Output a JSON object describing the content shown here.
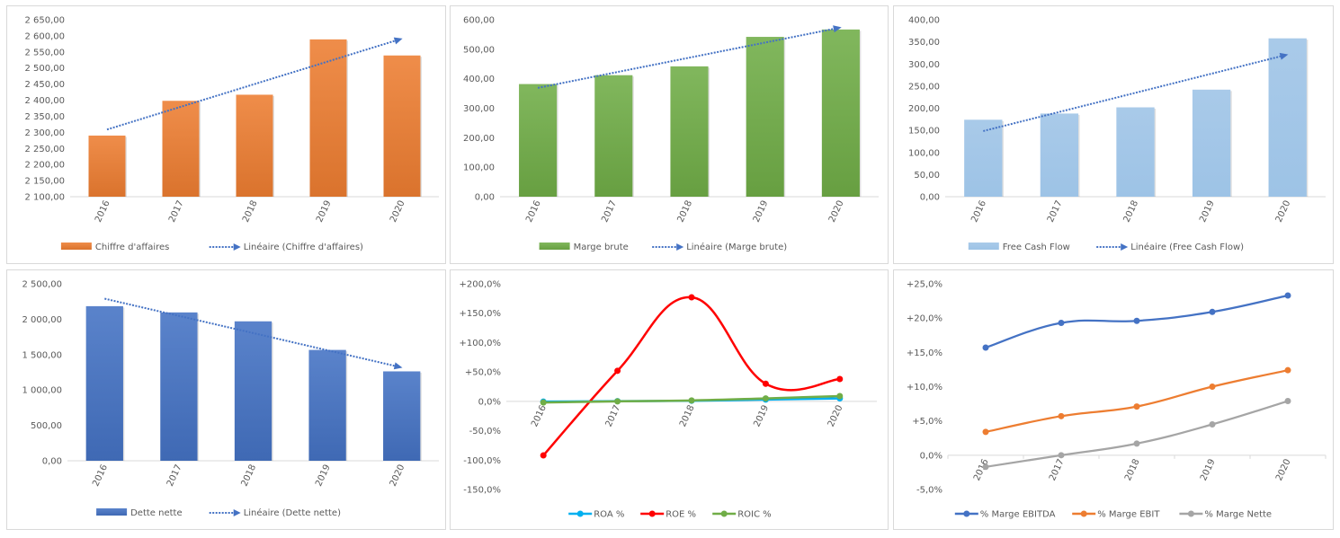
{
  "chart_data": [
    {
      "type": "bar",
      "categories": [
        "2016",
        "2017",
        "2018",
        "2019",
        "2020"
      ],
      "series": [
        {
          "name": "Chiffre d'affaires",
          "values": [
            2290,
            2398,
            2417,
            2589,
            2539
          ]
        }
      ],
      "trendline": {
        "name": "Linéaire (Chiffre d'affaires)",
        "type": "linear"
      },
      "ylim": [
        2100,
        2650
      ],
      "yticks": [
        "2 100,00",
        "2 150,00",
        "2 200,00",
        "2 250,00",
        "2 300,00",
        "2 350,00",
        "2 400,00",
        "2 450,00",
        "2 500,00",
        "2 550,00",
        "2 600,00",
        "2 650,00"
      ],
      "color": "#ED7D31",
      "legend": "bottom",
      "title": "",
      "xlabel": "",
      "ylabel": ""
    },
    {
      "type": "bar",
      "categories": [
        "2016",
        "2017",
        "2018",
        "2019",
        "2020"
      ],
      "series": [
        {
          "name": "Marge brute",
          "values": [
            382,
            412,
            442,
            542,
            567
          ]
        }
      ],
      "trendline": {
        "name": "Linéaire (Marge brute)",
        "type": "linear"
      },
      "ylim": [
        0,
        600
      ],
      "yticks": [
        "0,00",
        "100,00",
        "200,00",
        "300,00",
        "400,00",
        "500,00",
        "600,00"
      ],
      "color": "#70AD47",
      "legend": "bottom",
      "title": "",
      "xlabel": "",
      "ylabel": ""
    },
    {
      "type": "bar",
      "categories": [
        "2016",
        "2017",
        "2018",
        "2019",
        "2020"
      ],
      "series": [
        {
          "name": "Free Cash Flow",
          "values": [
            174,
            188,
            202,
            242,
            358
          ]
        }
      ],
      "trendline": {
        "name": "Linéaire (Free Cash Flow)",
        "type": "linear"
      },
      "ylim": [
        0,
        400
      ],
      "yticks": [
        "0,00",
        "50,00",
        "100,00",
        "150,00",
        "200,00",
        "250,00",
        "300,00",
        "350,00",
        "400,00"
      ],
      "color": "#9DC3E6",
      "legend": "bottom",
      "title": "",
      "xlabel": "",
      "ylabel": ""
    },
    {
      "type": "bar",
      "categories": [
        "2016",
        "2017",
        "2018",
        "2019",
        "2020"
      ],
      "series": [
        {
          "name": "Dette nette",
          "values": [
            2184,
            2096,
            1970,
            1566,
            1263
          ]
        }
      ],
      "trendline": {
        "name": "Linéaire (Dette nette)",
        "type": "linear"
      },
      "ylim": [
        0,
        2500
      ],
      "yticks": [
        "0,00",
        "500,00",
        "1 000,00",
        "1 500,00",
        "2 000,00",
        "2 500,00"
      ],
      "color": "#4472C4",
      "legend": "bottom",
      "title": "",
      "xlabel": "",
      "ylabel": ""
    },
    {
      "type": "line",
      "categories": [
        "2016",
        "2017",
        "2018",
        "2019",
        "2020"
      ],
      "series": [
        {
          "name": "ROA %",
          "values": [
            -0.5,
            0.3,
            1.0,
            3.0,
            5.0
          ],
          "color": "#00B0F0"
        },
        {
          "name": "ROE %",
          "values": [
            -92,
            52,
            177,
            30,
            38
          ],
          "color": "#FF0000"
        },
        {
          "name": "ROIC %",
          "values": [
            -2.0,
            0.0,
            1.5,
            5.0,
            9.0
          ],
          "color": "#70AD47"
        }
      ],
      "ylim": [
        -150,
        200
      ],
      "yticks": [
        "-150,0%",
        "-100,0%",
        "-50,0%",
        "0,0%",
        "+50,0%",
        "+100,0%",
        "+150,0%",
        "+200,0%"
      ],
      "legend": "bottom",
      "title": "",
      "xlabel": "",
      "ylabel": ""
    },
    {
      "type": "line",
      "categories": [
        "2016",
        "2017",
        "2018",
        "2019",
        "2020"
      ],
      "series": [
        {
          "name": "% Marge EBITDA",
          "values": [
            15.7,
            19.3,
            19.6,
            20.9,
            23.3
          ],
          "color": "#4472C4"
        },
        {
          "name": "% Marge EBIT",
          "values": [
            3.4,
            5.7,
            7.1,
            10.0,
            12.4
          ],
          "color": "#ED7D31"
        },
        {
          "name": "% Marge Nette",
          "values": [
            -1.7,
            0.0,
            1.7,
            4.5,
            7.9
          ],
          "color": "#A5A5A5"
        }
      ],
      "ylim": [
        -5,
        25
      ],
      "yticks": [
        "-5,0%",
        "0,0%",
        "+5,0%",
        "+10,0%",
        "+15,0%",
        "+20,0%",
        "+25,0%"
      ],
      "legend": "bottom",
      "title": "",
      "xlabel": "",
      "ylabel": ""
    }
  ],
  "colors": {
    "trend": "#4472C4",
    "axis": "#d9d9d9",
    "text": "#595959"
  }
}
